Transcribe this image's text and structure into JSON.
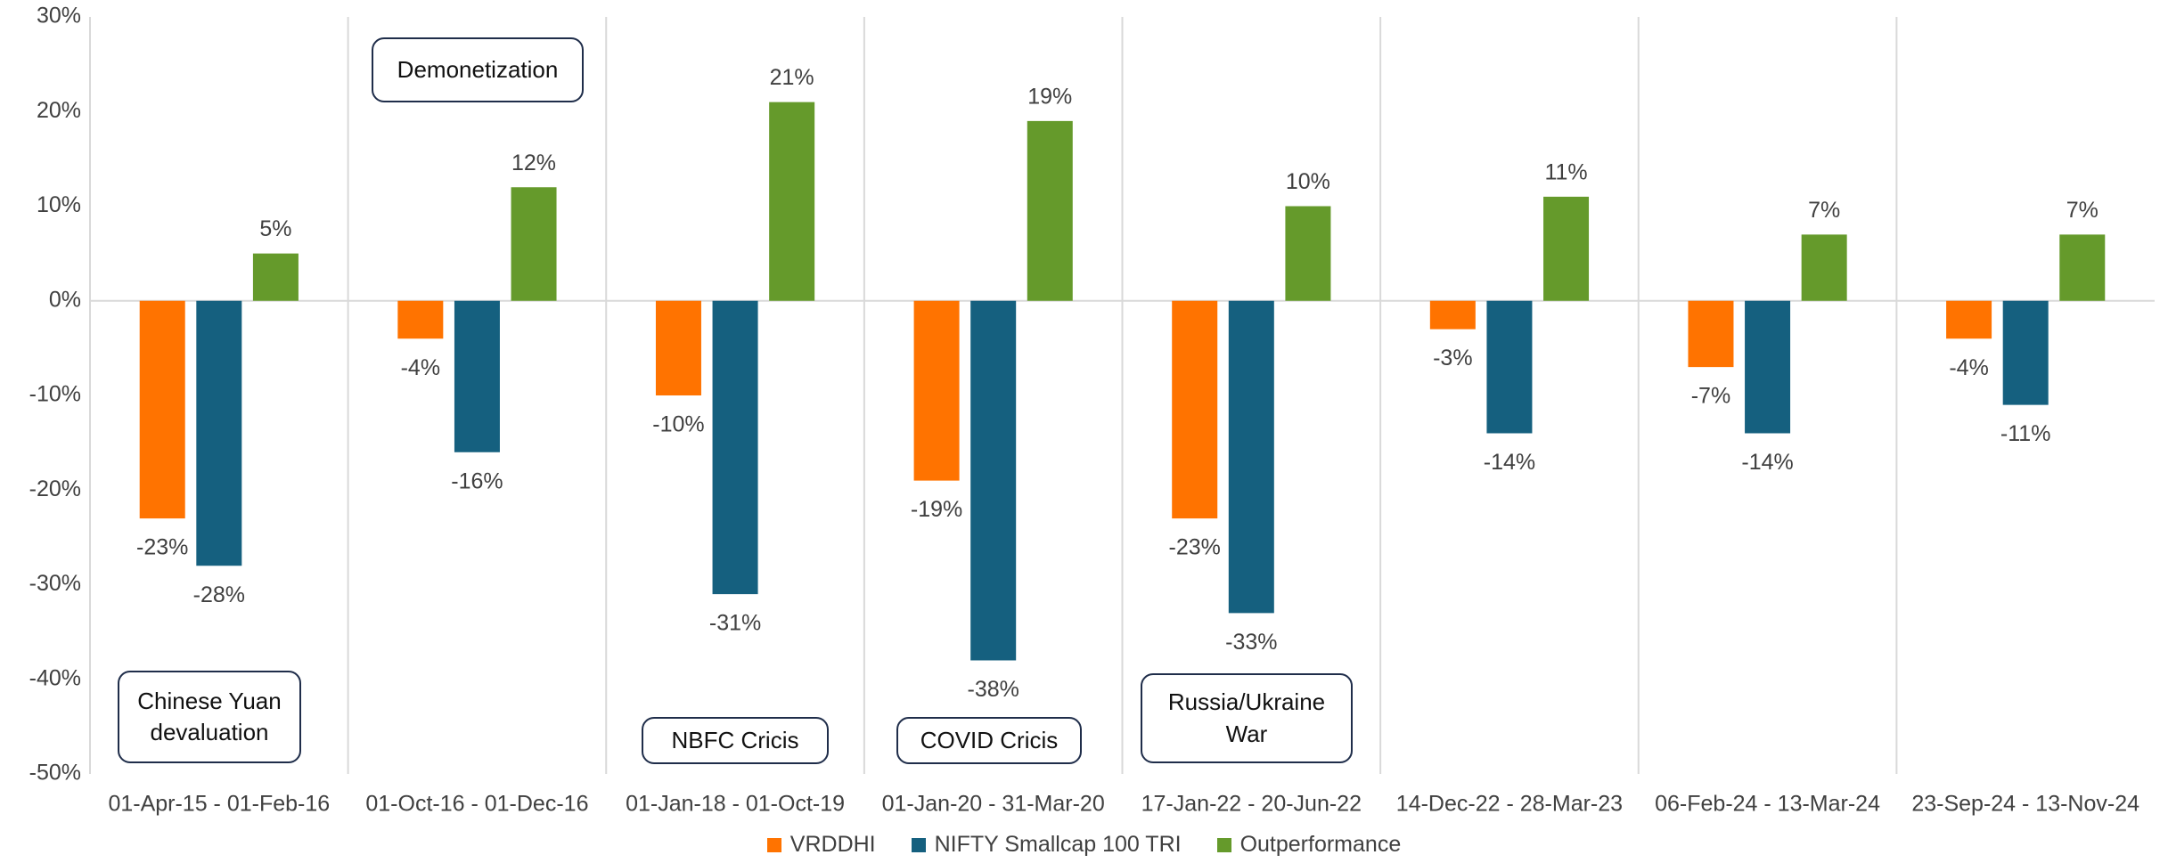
{
  "chart_data": {
    "type": "bar",
    "categories": [
      "01-Apr-15 - 01-Feb-16",
      "01-Oct-16 - 01-Dec-16",
      "01-Jan-18 - 01-Oct-19",
      "01-Jan-20 - 31-Mar-20",
      "17-Jan-22 - 20-Jun-22",
      "14-Dec-22 - 28-Mar-23",
      "06-Feb-24 - 13-Mar-24",
      "23-Sep-24 - 13-Nov-24"
    ],
    "series": [
      {
        "name": "VRDDHI",
        "color": "#ff7300",
        "values": [
          -23,
          -4,
          -10,
          -19,
          -23,
          -3,
          -7,
          -4
        ],
        "value_labels": [
          "-23%",
          "-4%",
          "-10%",
          "-19%",
          "-23%",
          "-3%",
          "-7%",
          "-4%"
        ]
      },
      {
        "name": "NIFTY Smallcap 100 TRI",
        "color": "#15607f",
        "values": [
          -28,
          -16,
          -31,
          -38,
          -33,
          -14,
          -14,
          -11
        ],
        "value_labels": [
          "-28%",
          "-16%",
          "-31%",
          "-38%",
          "-33%",
          "-14%",
          "-14%",
          "-11%"
        ]
      },
      {
        "name": "Outperformance",
        "color": "#659a2b",
        "values": [
          5,
          12,
          21,
          19,
          10,
          11,
          7,
          7
        ],
        "value_labels": [
          "5%",
          "12%",
          "21%",
          "19%",
          "10%",
          "11%",
          "7%",
          "7%"
        ]
      }
    ],
    "ylim": [
      -50,
      30
    ],
    "yticks": [
      {
        "value": -50,
        "label": "-50%"
      },
      {
        "value": -40,
        "label": "-40%"
      },
      {
        "value": -30,
        "label": "-30%"
      },
      {
        "value": -20,
        "label": "-20%"
      },
      {
        "value": -10,
        "label": "-10%"
      },
      {
        "value": 0,
        "label": "0%"
      },
      {
        "value": 10,
        "label": "10%"
      },
      {
        "value": 20,
        "label": "20%"
      },
      {
        "value": 30,
        "label": "30%"
      }
    ],
    "annotations": [
      "Chinese Yuan devaluation",
      "Demonetization",
      "NBFC Cricis",
      "COVID Cricis",
      "Russia/Ukraine War"
    ],
    "legend": "bottom"
  }
}
